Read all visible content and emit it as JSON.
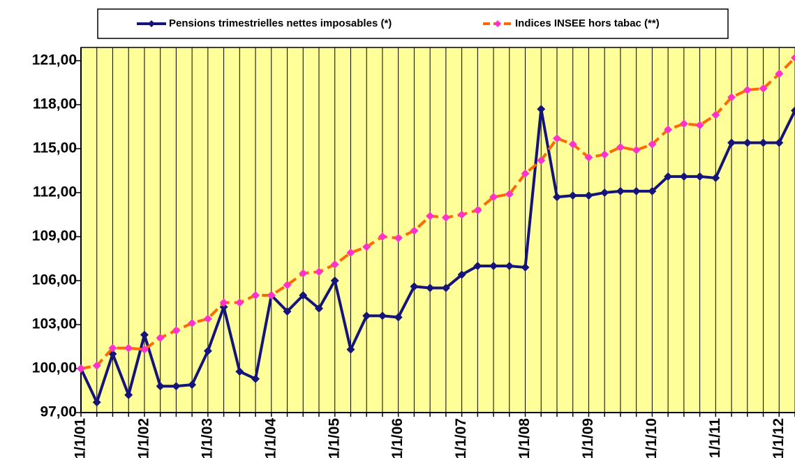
{
  "chart_data": {
    "type": "line",
    "categories": [
      "1/1/01",
      null,
      null,
      null,
      "1/1/02",
      null,
      null,
      null,
      "1/1/03",
      null,
      null,
      null,
      "1/1/04",
      null,
      null,
      null,
      "1/1/05",
      null,
      null,
      null,
      "1/1/06",
      null,
      null,
      null,
      "1/1/07",
      null,
      null,
      null,
      "1/1/08",
      null,
      null,
      null,
      "1/1/09",
      null,
      null,
      null,
      "1/1/10",
      null,
      null,
      null,
      "1/1/11",
      null,
      null,
      null,
      "1/1/12",
      null
    ],
    "series": [
      {
        "name": "Pensions trimestrielles nettes imposables (*)",
        "color": "#14147a",
        "marker_color": "#14147a",
        "dashed": false,
        "values": [
          100.0,
          97.7,
          101.0,
          98.2,
          102.3,
          98.8,
          98.8,
          98.9,
          101.2,
          104.2,
          99.8,
          99.3,
          105.0,
          103.9,
          105.0,
          104.1,
          106.0,
          101.3,
          103.6,
          103.6,
          103.5,
          105.6,
          105.5,
          105.5,
          106.4,
          107.0,
          107.0,
          107.0,
          106.9,
          117.7,
          111.7,
          111.8,
          111.8,
          112.0,
          112.1,
          112.1,
          112.1,
          113.1,
          113.1,
          113.1,
          113.0,
          115.4,
          115.4,
          115.4,
          115.4,
          117.6
        ]
      },
      {
        "name": "Indices INSEE hors tabac (**)",
        "color": "#ff6a00",
        "marker_color": "#ff33cc",
        "dashed": true,
        "values": [
          100.0,
          100.2,
          101.4,
          101.4,
          101.3,
          102.1,
          102.6,
          103.1,
          103.4,
          104.5,
          104.5,
          105.0,
          105.0,
          105.7,
          106.5,
          106.6,
          107.1,
          107.9,
          108.3,
          109.0,
          108.9,
          109.4,
          110.4,
          110.3,
          110.5,
          110.8,
          111.7,
          111.9,
          113.3,
          114.2,
          115.7,
          115.3,
          114.4,
          114.6,
          115.1,
          114.9,
          115.3,
          116.3,
          116.7,
          116.6,
          117.3,
          118.5,
          119.0,
          119.1,
          120.1,
          121.2
        ]
      }
    ],
    "ylim": [
      97,
      121.9
    ],
    "yticks": [
      {
        "value": 97,
        "label": "97,00"
      },
      {
        "value": 100,
        "label": "100,00"
      },
      {
        "value": 103,
        "label": "103,00"
      },
      {
        "value": 106,
        "label": "106,00"
      },
      {
        "value": 109,
        "label": "109,00"
      },
      {
        "value": 112,
        "label": "112,00"
      },
      {
        "value": 115,
        "label": "115,00"
      },
      {
        "value": 118,
        "label": "118,00"
      },
      {
        "value": 121,
        "label": "121,00"
      }
    ],
    "grid": "vertical",
    "background": "#ffff99",
    "legend": "top"
  }
}
